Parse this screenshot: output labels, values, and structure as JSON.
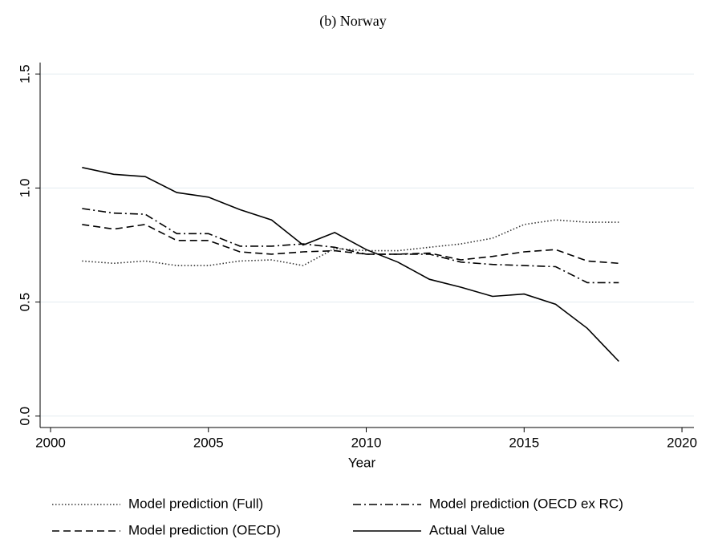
{
  "chart_data": {
    "type": "line",
    "title": "(b) Norway",
    "x_label": "Year",
    "x": [
      2001,
      2002,
      2003,
      2004,
      2005,
      2006,
      2007,
      2008,
      2009,
      2010,
      2011,
      2012,
      2013,
      2014,
      2015,
      2016,
      2017,
      2018
    ],
    "series": [
      {
        "name": "Model prediction (Full)",
        "color": "#333333",
        "dash": "1.5 2.5",
        "values": [
          0.68,
          0.67,
          0.68,
          0.66,
          0.66,
          0.68,
          0.685,
          0.66,
          0.735,
          0.725,
          0.725,
          0.74,
          0.755,
          0.78,
          0.84,
          0.86,
          0.85,
          0.85
        ]
      },
      {
        "name": "Model prediction (OECD ex RC)",
        "color": "#000000",
        "dash": "10 4 2 4",
        "values": [
          0.91,
          0.89,
          0.885,
          0.8,
          0.8,
          0.745,
          0.745,
          0.755,
          0.74,
          0.71,
          0.71,
          0.71,
          0.675,
          0.665,
          0.66,
          0.655,
          0.585,
          0.585
        ]
      },
      {
        "name": "Model prediction (OECD)",
        "color": "#000000",
        "dash": "9 5",
        "values": [
          0.84,
          0.82,
          0.84,
          0.77,
          0.77,
          0.72,
          0.71,
          0.72,
          0.725,
          0.71,
          0.71,
          0.715,
          0.685,
          0.7,
          0.72,
          0.73,
          0.68,
          0.67
        ]
      },
      {
        "name": "Actual Value",
        "color": "#000000",
        "dash": "none",
        "values": [
          1.09,
          1.06,
          1.05,
          0.98,
          0.96,
          0.905,
          0.86,
          0.75,
          0.805,
          0.73,
          0.675,
          0.6,
          0.565,
          0.525,
          0.535,
          0.49,
          0.385,
          0.24
        ]
      }
    ],
    "xlim": [
      1999.67,
      2020.38
    ],
    "xticks": [
      2000,
      2005,
      2010,
      2015,
      2020
    ],
    "ylim": [
      -0.05,
      1.55
    ],
    "yticks": [
      {
        "value": 0,
        "label": "0.0"
      },
      0.5,
      {
        "value": 1,
        "label": "1.0"
      },
      1.5
    ],
    "grid": true
  }
}
